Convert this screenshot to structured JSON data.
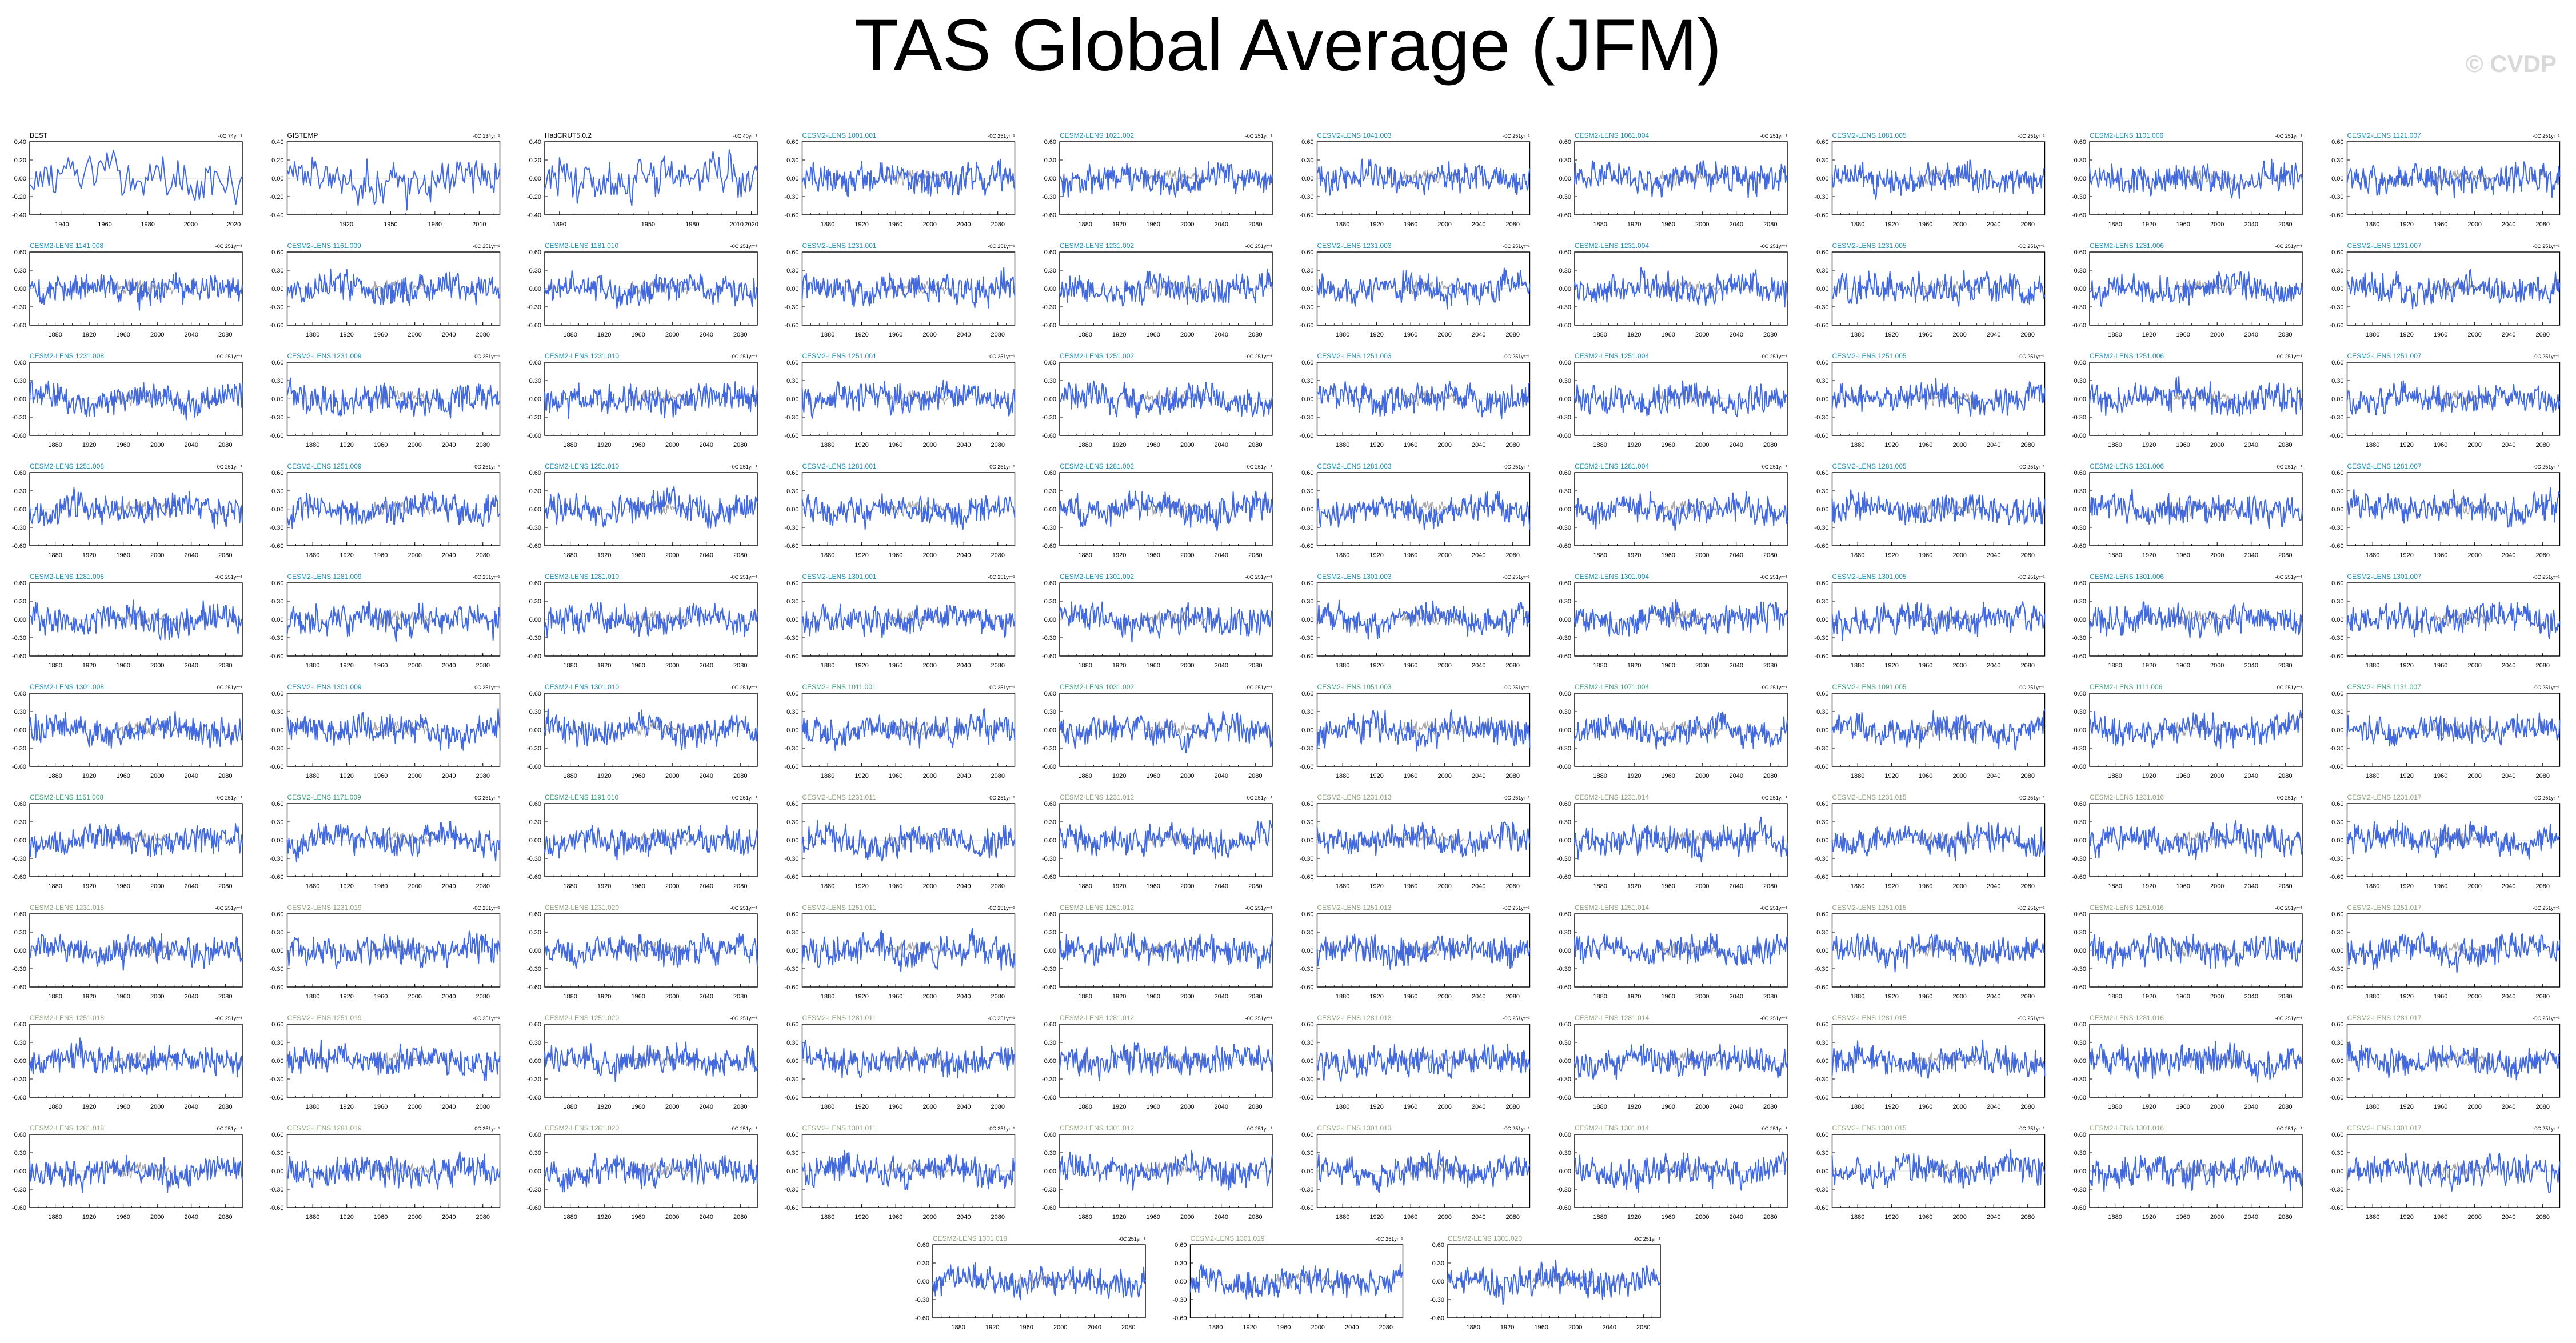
{
  "title": "TAS Global Average (JFM)",
  "watermark": "© CVDP",
  "colors": {
    "series": "#4169e1",
    "reference": "#a9a9a9",
    "text_obs": "#000000",
    "text_lens_a": "#1f8fb5",
    "text_lens_b": "#3e9e7a",
    "text_lens_c": "#8fa07f"
  },
  "chart_data": {
    "type": "line",
    "layout": "small-multiples",
    "grid_columns": 10,
    "observational_panels": [
      {
        "name": "BEST",
        "units": "-0C 74yr⁻¹",
        "x_ticks": [
          "1940",
          "1960",
          "1980",
          "2000",
          "2020"
        ],
        "y_ticks": [
          "0.40",
          "0.20",
          "0.00",
          "-0.20",
          "-0.40"
        ],
        "xlim": [
          1925,
          2024
        ],
        "ylim": [
          -0.4,
          0.4
        ]
      },
      {
        "name": "GISTEMP",
        "units": "-0C 134yr⁻¹",
        "x_ticks": [
          "1920",
          "1950",
          "1980",
          "2010"
        ],
        "y_ticks": [
          "0.40",
          "0.20",
          "0.00",
          "-0.20",
          "-0.40"
        ],
        "xlim": [
          1880,
          2024
        ],
        "ylim": [
          -0.4,
          0.4
        ]
      },
      {
        "name": "HadCRUT5.0.2",
        "units": "-0C 40yr⁻¹",
        "x_ticks": [
          "1890",
          "1950",
          "1980",
          "2010",
          "2020"
        ],
        "y_ticks": [
          "0.40",
          "0.20",
          "0.00",
          "-0.20",
          "-0.40"
        ],
        "xlim": [
          1880,
          2024
        ],
        "ylim": [
          -0.4,
          0.4
        ]
      }
    ],
    "ensemble_panels": {
      "units": "-0C 251yr⁻¹",
      "x_ticks": [
        "1880",
        "1920",
        "1960",
        "2000",
        "2040",
        "2080"
      ],
      "y_ticks": [
        "0.60",
        "0.30",
        "0.00",
        "-0.30",
        "-0.60"
      ],
      "xlim": [
        1850,
        2100
      ],
      "ylim": [
        -0.6,
        0.6
      ],
      "names": [
        "CESM2-LENS 1001.001",
        "CESM2-LENS 1021.002",
        "CESM2-LENS 1041.003",
        "CESM2-LENS 1061.004",
        "CESM2-LENS 1081.005",
        "CESM2-LENS 1101.006",
        "CESM2-LENS 1121.007",
        "CESM2-LENS 1141.008",
        "CESM2-LENS 1161.009",
        "CESM2-LENS 1181.010",
        "CESM2-LENS 1231.001",
        "CESM2-LENS 1231.002",
        "CESM2-LENS 1231.003",
        "CESM2-LENS 1231.004",
        "CESM2-LENS 1231.005",
        "CESM2-LENS 1231.006",
        "CESM2-LENS 1231.007",
        "CESM2-LENS 1231.008",
        "CESM2-LENS 1231.009",
        "CESM2-LENS 1231.010",
        "CESM2-LENS 1251.001",
        "CESM2-LENS 1251.002",
        "CESM2-LENS 1251.003",
        "CESM2-LENS 1251.004",
        "CESM2-LENS 1251.005",
        "CESM2-LENS 1251.006",
        "CESM2-LENS 1251.007",
        "CESM2-LENS 1251.008",
        "CESM2-LENS 1251.009",
        "CESM2-LENS 1251.010",
        "CESM2-LENS 1281.001",
        "CESM2-LENS 1281.002",
        "CESM2-LENS 1281.003",
        "CESM2-LENS 1281.004",
        "CESM2-LENS 1281.005",
        "CESM2-LENS 1281.006",
        "CESM2-LENS 1281.007",
        "CESM2-LENS 1281.008",
        "CESM2-LENS 1281.009",
        "CESM2-LENS 1281.010",
        "CESM2-LENS 1301.001",
        "CESM2-LENS 1301.002",
        "CESM2-LENS 1301.003",
        "CESM2-LENS 1301.004",
        "CESM2-LENS 1301.005",
        "CESM2-LENS 1301.006",
        "CESM2-LENS 1301.007",
        "CESM2-LENS 1301.008",
        "CESM2-LENS 1301.009",
        "CESM2-LENS 1301.010",
        "CESM2-LENS 1011.001",
        "CESM2-LENS 1031.002",
        "CESM2-LENS 1051.003",
        "CESM2-LENS 1071.004",
        "CESM2-LENS 1091.005",
        "CESM2-LENS 1111.006",
        "CESM2-LENS 1131.007",
        "CESM2-LENS 1151.008",
        "CESM2-LENS 1171.009",
        "CESM2-LENS 1191.010",
        "CESM2-LENS 1231.011",
        "CESM2-LENS 1231.012",
        "CESM2-LENS 1231.013",
        "CESM2-LENS 1231.014",
        "CESM2-LENS 1231.015",
        "CESM2-LENS 1231.016",
        "CESM2-LENS 1231.017",
        "CESM2-LENS 1231.018",
        "CESM2-LENS 1231.019",
        "CESM2-LENS 1231.020",
        "CESM2-LENS 1251.011",
        "CESM2-LENS 1251.012",
        "CESM2-LENS 1251.013",
        "CESM2-LENS 1251.014",
        "CESM2-LENS 1251.015",
        "CESM2-LENS 1251.016",
        "CESM2-LENS 1251.017",
        "CESM2-LENS 1251.018",
        "CESM2-LENS 1251.019",
        "CESM2-LENS 1251.020",
        "CESM2-LENS 1281.011",
        "CESM2-LENS 1281.012",
        "CESM2-LENS 1281.013",
        "CESM2-LENS 1281.014",
        "CESM2-LENS 1281.015",
        "CESM2-LENS 1281.016",
        "CESM2-LENS 1281.017",
        "CESM2-LENS 1281.018",
        "CESM2-LENS 1281.019",
        "CESM2-LENS 1281.020",
        "CESM2-LENS 1301.011",
        "CESM2-LENS 1301.012",
        "CESM2-LENS 1301.013",
        "CESM2-LENS 1301.014",
        "CESM2-LENS 1301.015",
        "CESM2-LENS 1301.016",
        "CESM2-LENS 1301.017",
        "CESM2-LENS 1301.018",
        "CESM2-LENS 1301.019",
        "CESM2-LENS 1301.020"
      ]
    },
    "series_description": "blue line = member time series; gray line = observed reference overlay near 1950-2020"
  }
}
